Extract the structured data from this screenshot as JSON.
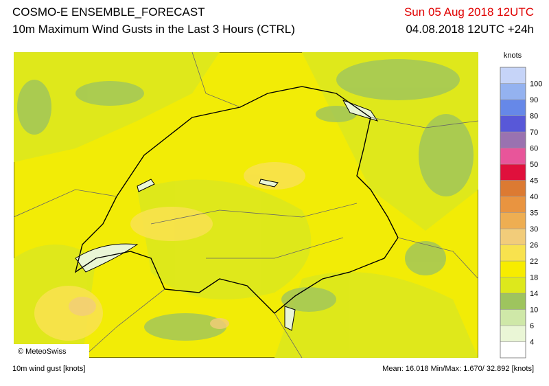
{
  "header": {
    "title": "COSMO-E ENSEMBLE_FORECAST",
    "subtitle": "10m Maximum Wind Gusts in the Last 3 Hours (CTRL)",
    "valid_time": "Sun 05 Aug 2018 12UTC",
    "run_time": "04.08.2018 12UTC +24h"
  },
  "legend": {
    "unit": "knots",
    "levels": [
      4,
      6,
      10,
      14,
      18,
      22,
      26,
      30,
      35,
      40,
      45,
      50,
      60,
      70,
      80,
      90,
      100
    ],
    "colors": [
      "#ffffff",
      "#eaf6d6",
      "#cfe8a8",
      "#9ec45e",
      "#dde81c",
      "#f7ec00",
      "#f8e24e",
      "#f2cc7a",
      "#eeae52",
      "#e99440",
      "#dc7a32",
      "#e0103c",
      "#e8559a",
      "#9a72b0",
      "#5858d8",
      "#6688e8",
      "#94b2f0",
      "#c6d4f8"
    ]
  },
  "footer": {
    "copyright": "© MeteoSwiss",
    "variable": "10m wind gust [knots]",
    "stats": "Mean: 16.018 Min/Max: 1.670/ 32.892 [knots]"
  }
}
